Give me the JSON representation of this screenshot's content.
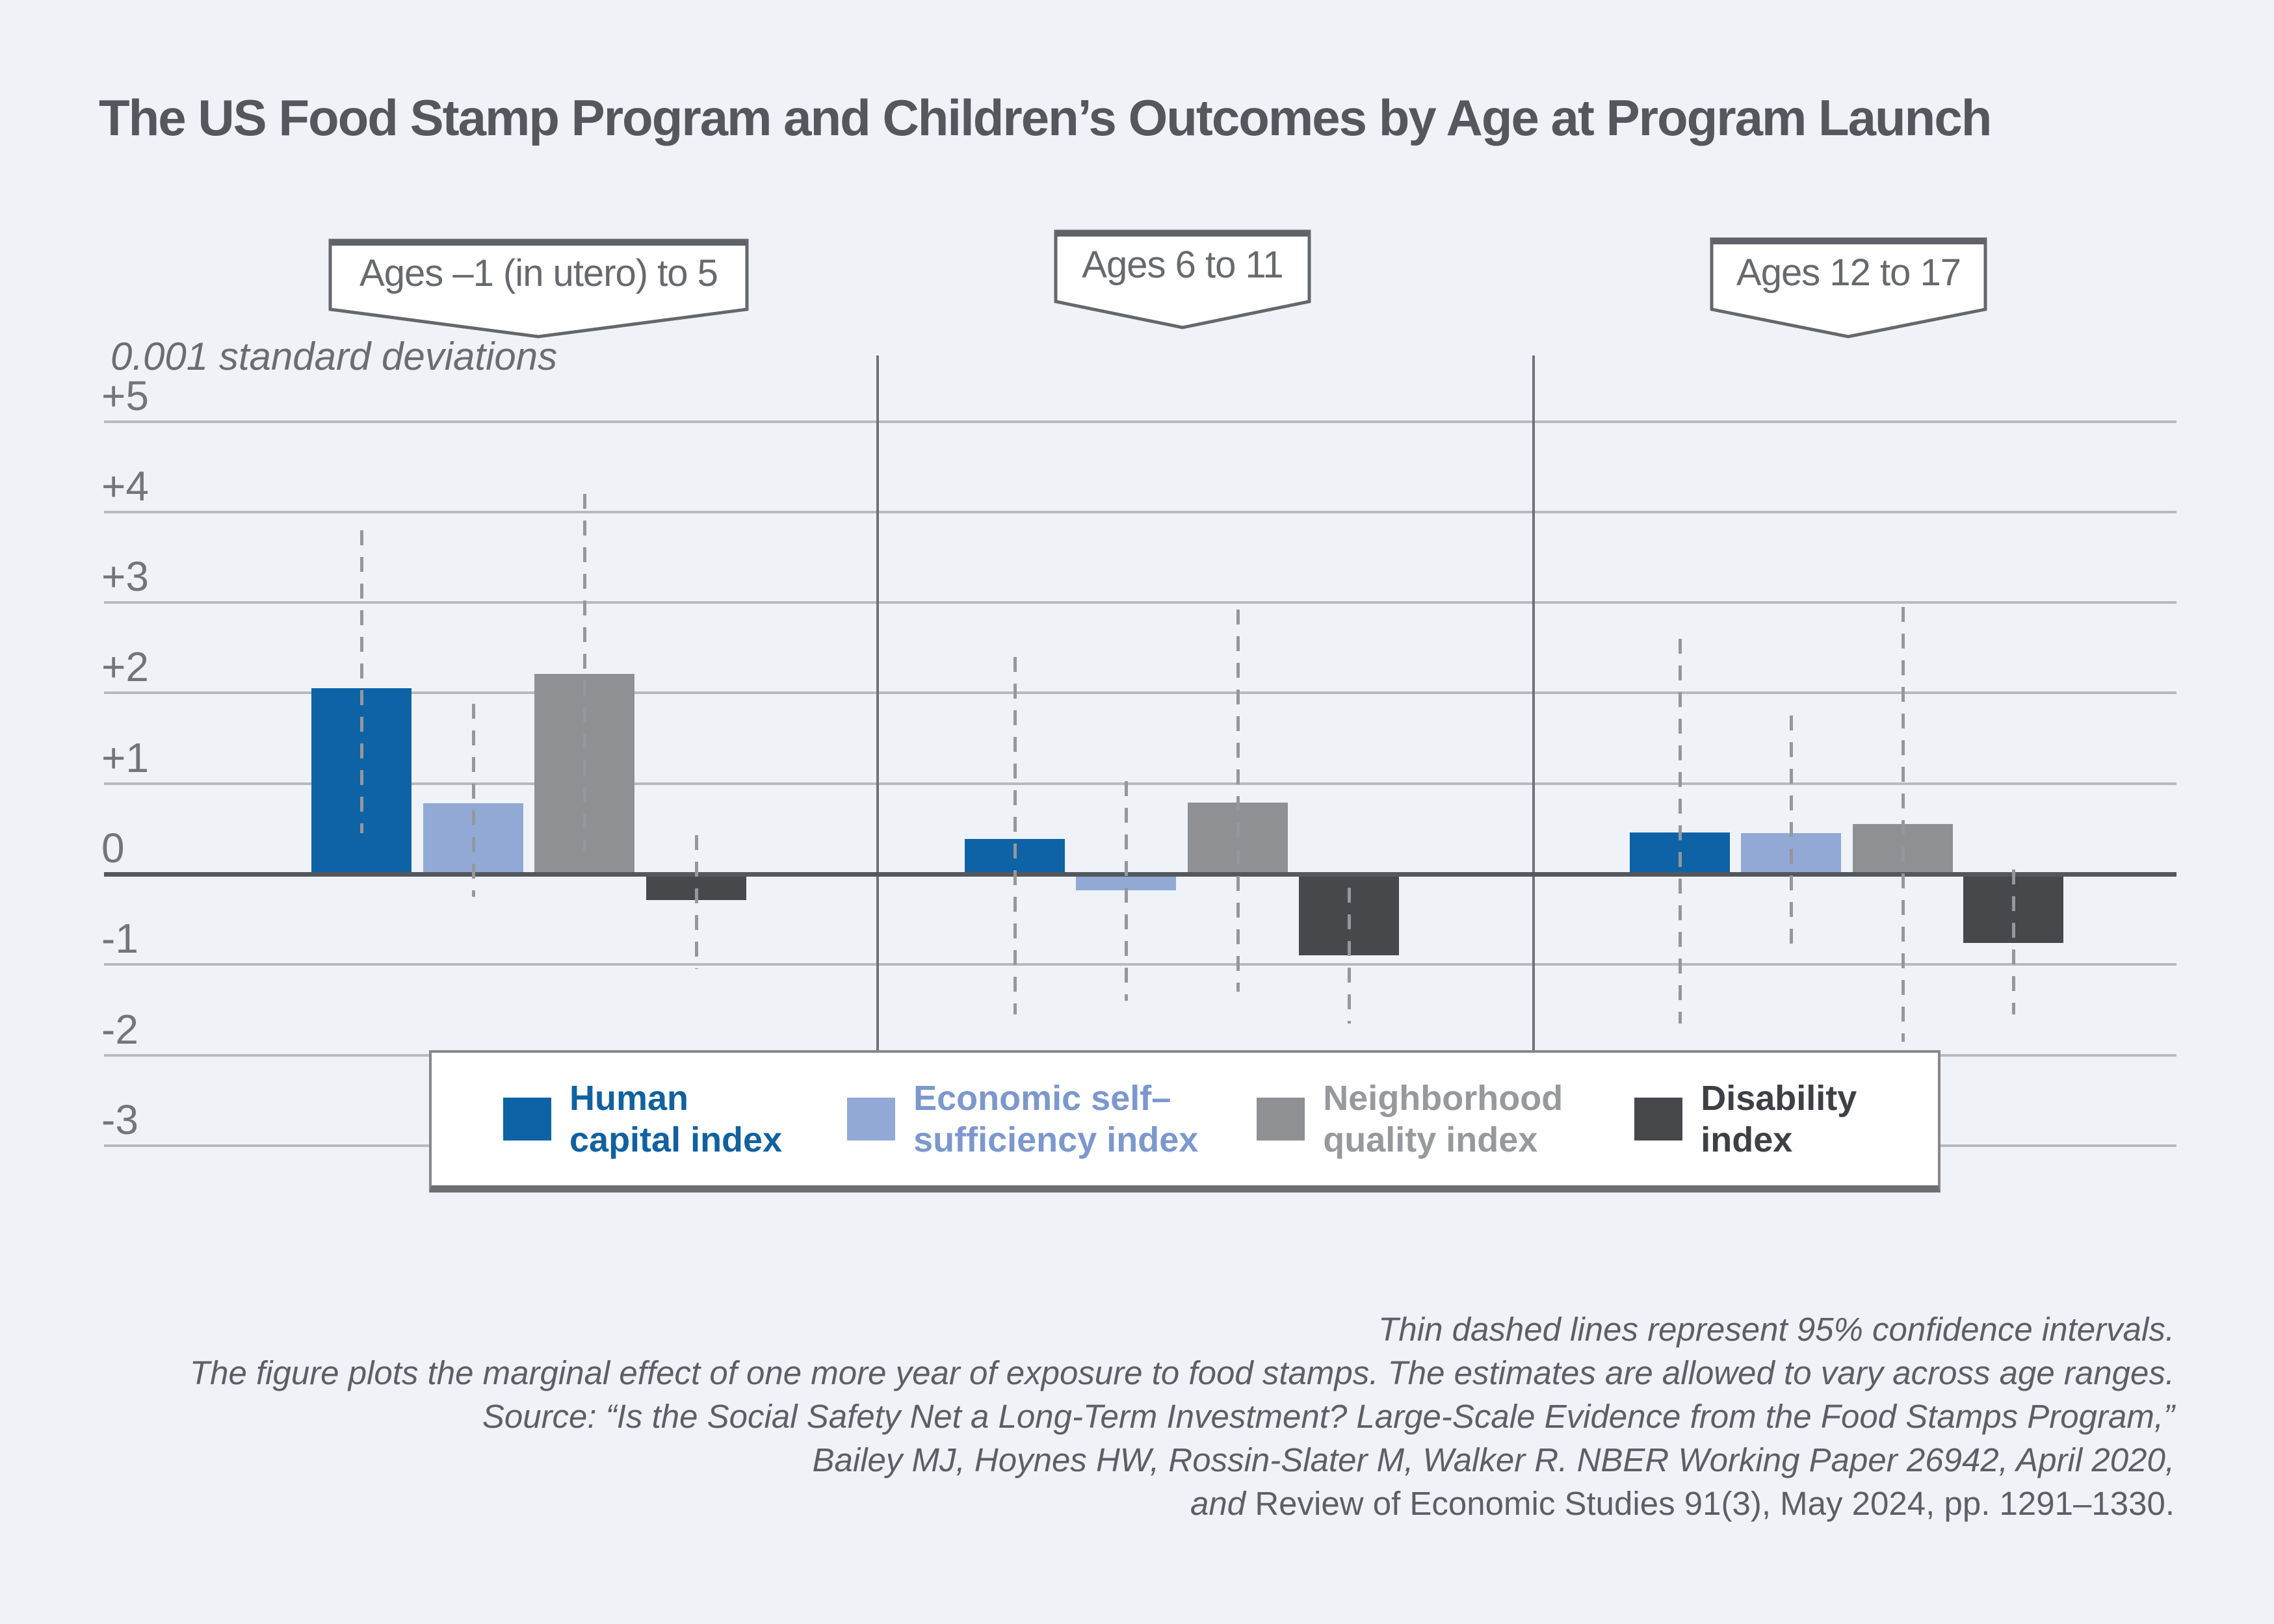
{
  "title": "The US Food Stamp Program and Children’s Outcomes by Age at Program Launch",
  "y_axis": {
    "unit_label": "0.001 standard deviations",
    "ticks": [
      {
        "label": "+5",
        "value": 5
      },
      {
        "label": "+4",
        "value": 4
      },
      {
        "label": "+3",
        "value": 3
      },
      {
        "label": "+2",
        "value": 2
      },
      {
        "label": "+1",
        "value": 1
      },
      {
        "label": "0",
        "value": 0
      },
      {
        "label": "-1",
        "value": -1
      },
      {
        "label": "-2",
        "value": -2
      },
      {
        "label": "-3",
        "value": -3
      }
    ]
  },
  "panels": [
    {
      "label": "Ages –1 (in utero) to 5"
    },
    {
      "label": "Ages 6 to 11"
    },
    {
      "label": "Ages 12 to 17"
    }
  ],
  "legend": {
    "entries": [
      {
        "name": "Human capital index",
        "lines": [
          "Human",
          "capital index"
        ],
        "swatch_color": "#0d63a5",
        "text_color": "#11619f"
      },
      {
        "name": "Economic self-sufficiency index",
        "lines": [
          "Economic self–",
          "sufficiency index"
        ],
        "swatch_color": "#92a9d5",
        "text_color": "#7c98cc"
      },
      {
        "name": "Neighborhood quality index",
        "lines": [
          "Neighborhood",
          "quality index"
        ],
        "swatch_color": "#8e9093",
        "text_color": "#97999c"
      },
      {
        "name": "Disability index",
        "lines": [
          "Disability",
          "index"
        ],
        "swatch_color": "#46484b",
        "text_color": "#3d4044"
      }
    ]
  },
  "notes": [
    {
      "italic": "Thin dashed lines represent 95% confidence intervals.",
      "roman": ""
    },
    {
      "italic": "The figure plots the marginal effect of one more year of exposure to food stamps. The estimates are allowed to vary across age ranges.",
      "roman": ""
    },
    {
      "italic": "Source: “Is the Social Safety Net a Long-Term Investment? Large-Scale Evidence from the Food Stamps Program,”",
      "roman": ""
    },
    {
      "italic": "Bailey MJ, Hoynes HW, Rossin-Slater M, Walker R. NBER Working Paper 26942, April 2020,",
      "roman": ""
    },
    {
      "italic": "and ",
      "roman": "Review of Economic Studies 91(3), May 2024, pp. 1291–1330."
    }
  ],
  "chart_data": {
    "type": "bar",
    "title": "The US Food Stamp Program and Children’s Outcomes by Age at Program Launch",
    "ylabel": "0.001 standard deviations",
    "ylim": [
      -3,
      5
    ],
    "gridlines": [
      5,
      4,
      3,
      2,
      1,
      0,
      -1,
      -2,
      -3
    ],
    "grid": true,
    "legend_position": "bottom",
    "categories": [
      "Ages –1 (in utero) to 5",
      "Ages 6 to 11",
      "Ages 12 to 17"
    ],
    "series": [
      {
        "name": "Human capital index",
        "color": "#0d63a5",
        "values": [
          2.05,
          0.39,
          0.46
        ],
        "ci_low": [
          0.45,
          -1.55,
          -1.65
        ],
        "ci_high": [
          3.8,
          2.4,
          2.6
        ]
      },
      {
        "name": "Economic self-sufficiency index",
        "color": "#92a9d5",
        "values": [
          0.78,
          -0.18,
          0.45
        ],
        "ci_low": [
          -0.25,
          -1.4,
          -0.85
        ],
        "ci_high": [
          1.88,
          1.03,
          1.75
        ]
      },
      {
        "name": "Neighborhood quality index",
        "color": "#8e9093",
        "values": [
          2.21,
          0.79,
          0.55
        ],
        "ci_low": [
          0.25,
          -1.3,
          -1.85
        ],
        "ci_high": [
          4.2,
          2.92,
          2.95
        ]
      },
      {
        "name": "Disability index",
        "color": "#46484b",
        "values": [
          -0.29,
          -0.9,
          -0.76
        ],
        "ci_low": [
          -1.05,
          -1.65,
          -1.55
        ],
        "ci_high": [
          0.43,
          -0.15,
          0.05
        ]
      }
    ],
    "annotation": "Thin dashed lines represent 95% confidence intervals."
  }
}
